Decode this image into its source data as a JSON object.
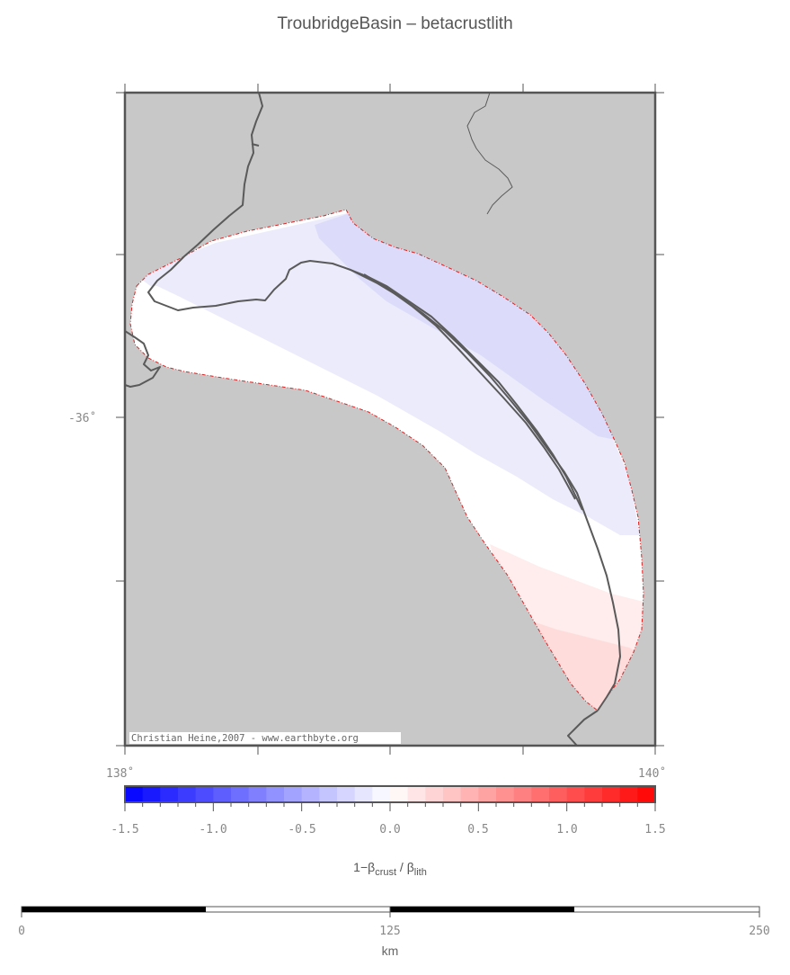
{
  "title": "TroubridgeBasin – betacrustlith",
  "map": {
    "lat_label": "-36˚",
    "lon_labels": [
      "138˚",
      "140˚"
    ],
    "credit": "Christian Heine,2007 - www.earthbyte.org",
    "colors": {
      "land": "#c8c8c8",
      "basin_outline": "#e02020",
      "coastline": "#5a5a5a"
    }
  },
  "colorbar": {
    "ticks": [
      "-1.5",
      "-1.0",
      "-0.5",
      "0.0",
      "0.5",
      "1.0",
      "1.5"
    ],
    "range": [
      -1.5,
      1.5
    ],
    "label_main": "1−β",
    "label_sub1": "crust",
    "label_mid": " / β",
    "label_sub2": "lith",
    "colors": {
      "min": "#0000ff",
      "mid": "#ffffff",
      "max": "#ff0000"
    }
  },
  "scalebar": {
    "ticks": [
      "0",
      "125",
      "250"
    ],
    "unit": "km"
  }
}
